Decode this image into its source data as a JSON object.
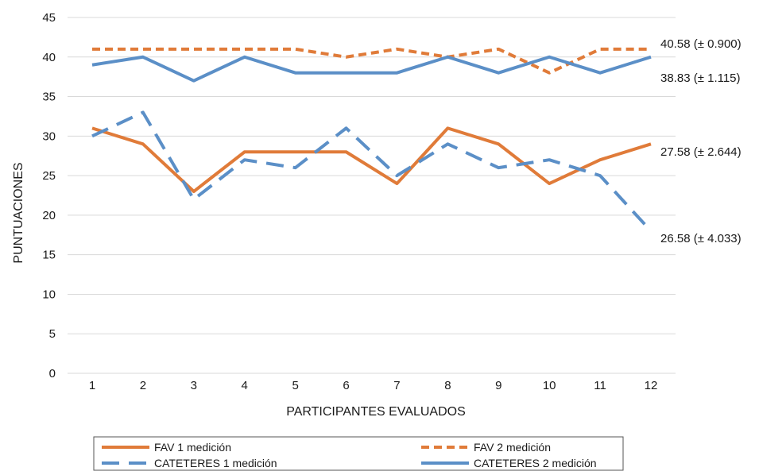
{
  "chart_data": {
    "type": "line",
    "title": "",
    "xlabel": "PARTICIPANTES EVALUADOS",
    "ylabel": "PUNTUACIONES",
    "x": [
      1,
      2,
      3,
      4,
      5,
      6,
      7,
      8,
      9,
      10,
      11,
      12
    ],
    "x_tick_labels": [
      "1",
      "2",
      "3",
      "4",
      "5",
      "6",
      "7",
      "8",
      "9",
      "10",
      "11",
      "12"
    ],
    "ylim": [
      0,
      45
    ],
    "y_ticks": [
      0,
      5,
      10,
      15,
      20,
      25,
      30,
      35,
      40,
      45
    ],
    "y_tick_labels": [
      "0",
      "5",
      "10",
      "15",
      "20",
      "25",
      "30",
      "35",
      "40",
      "45"
    ],
    "grid": true,
    "legend_position": "bottom",
    "series": [
      {
        "name": "FAV 1 medición",
        "values": [
          31,
          29,
          23,
          28,
          28,
          28,
          24,
          31,
          29,
          24,
          27,
          29
        ],
        "color": "#e07b39",
        "style": "solid",
        "end_label": "27.58 (± 2.644)"
      },
      {
        "name": "FAV 2 medición",
        "values": [
          41,
          41,
          41,
          41,
          41,
          40,
          41,
          40,
          41,
          38,
          41,
          41
        ],
        "color": "#e07b39",
        "style": "dashed",
        "end_label": "40.58 (± 0.900)"
      },
      {
        "name": "CATETERES 1 medición",
        "values": [
          30,
          33,
          22,
          27,
          26,
          31,
          25,
          29,
          26,
          27,
          25,
          18
        ],
        "color": "#5b8fc7",
        "style": "dashed",
        "end_label": "26.58 (± 4.033)"
      },
      {
        "name": "CATETERES 2 medición",
        "values": [
          39,
          40,
          37,
          40,
          38,
          38,
          38,
          40,
          38,
          40,
          38,
          40
        ],
        "color": "#5b8fc7",
        "style": "solid",
        "end_label": "38.83 (± 1.115)"
      }
    ]
  }
}
